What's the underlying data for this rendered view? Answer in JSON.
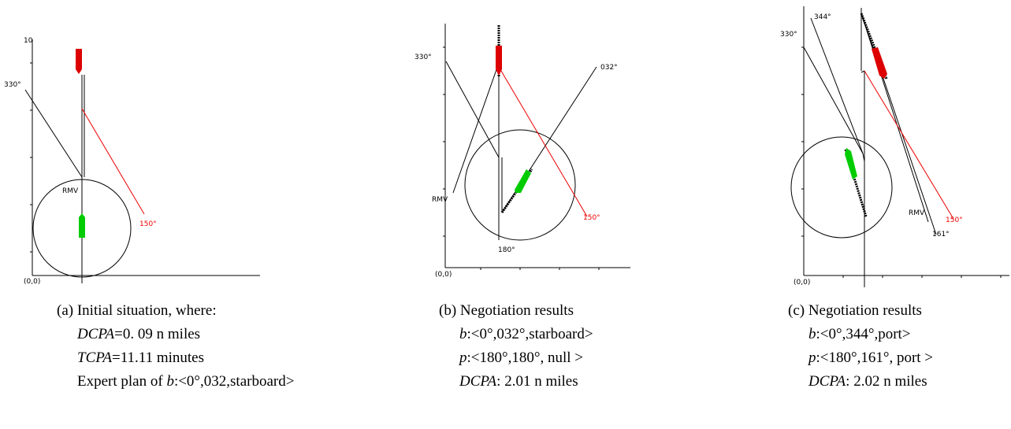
{
  "panels": [
    {
      "origin": "(0,0)",
      "top_tick": "10",
      "angles": {
        "line330": "330°",
        "line150": "150°"
      },
      "rmv": "RMV",
      "caption": {
        "title": "(a) Initial situation, where:",
        "dcpa_label": "DCPA",
        "dcpa_value": "=0. 09 n miles",
        "tcpa_label": "TCPA",
        "tcpa_value": "=11.11 minutes",
        "plan_prefix": "Expert plan of ",
        "plan_var": "b",
        "plan_value": ":<0°,032,starboard>"
      }
    },
    {
      "origin": "(0,0)",
      "angles": {
        "line330": "330°",
        "line032": "032°",
        "line150": "150°",
        "line180": "180°"
      },
      "rmv": "RMV",
      "caption": {
        "title": "(b) Negotiation results",
        "b_var": "b",
        "b_value": ":<0°,032°,starboard>",
        "p_var": "p",
        "p_value": ":<180°,180°, null >",
        "dcpa_label": "DCPA",
        "dcpa_value": ": 2.01 n miles"
      }
    },
    {
      "origin": "(0,0)",
      "angles": {
        "line330": "330°",
        "line344": "344°",
        "line150": "150°",
        "line161": "161°"
      },
      "rmv": "RMV",
      "caption": {
        "title": "(c) Negotiation results",
        "b_var": "b",
        "b_value": ":<0°,344°,port>",
        "p_var": "p",
        "p_value": ":<180°,161°, port >",
        "dcpa_label": "DCPA",
        "dcpa_value": ": 2.02 n miles"
      }
    }
  ],
  "colors": {
    "own_ship": "#dd0000",
    "target_ship": "#00cc00",
    "red_line": "#ee0000",
    "lines": "#000000"
  }
}
